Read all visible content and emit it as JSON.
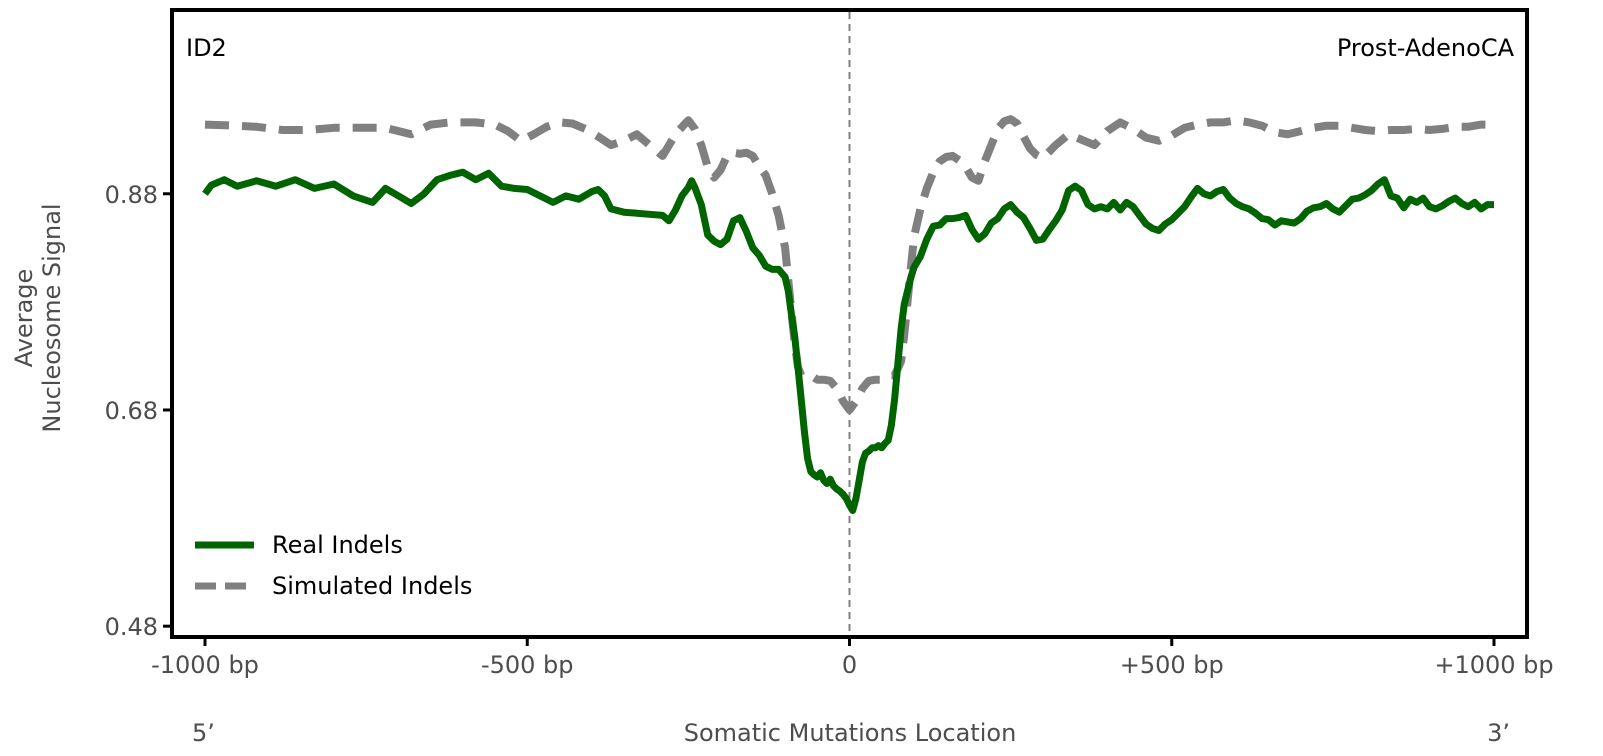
{
  "chart_data": {
    "type": "line",
    "signature_label": "ID2",
    "cancer_type_label": "Prost-AdenoCA",
    "ylabel_lines": [
      "Average",
      "Nucleosome Signal"
    ],
    "xlabel": "Somatic Mutations Location",
    "five_prime_label": "5’",
    "three_prime_label": "3’",
    "xlim": [
      -1000,
      1000
    ],
    "ylim": [
      0.47,
      1.05
    ],
    "x_ticks": [
      {
        "value": -1000,
        "label": "-1000 bp"
      },
      {
        "value": -500,
        "label": "-500 bp"
      },
      {
        "value": 0,
        "label": "0"
      },
      {
        "value": 500,
        "label": "+500 bp"
      },
      {
        "value": 1000,
        "label": "+1000 bp"
      }
    ],
    "y_ticks": [
      {
        "value": 0.48,
        "label": "0.48"
      },
      {
        "value": 0.68,
        "label": "0.68"
      },
      {
        "value": 0.88,
        "label": "0.88"
      }
    ],
    "center_line_x": 0,
    "legend_position": "lower-left",
    "series": [
      {
        "name": "Real Indels",
        "color": "#006400",
        "style": "solid",
        "points": [
          [
            -1000,
            0.88
          ],
          [
            -990,
            0.888
          ],
          [
            -970,
            0.893
          ],
          [
            -950,
            0.887
          ],
          [
            -920,
            0.892
          ],
          [
            -890,
            0.887
          ],
          [
            -860,
            0.893
          ],
          [
            -830,
            0.885
          ],
          [
            -800,
            0.889
          ],
          [
            -770,
            0.878
          ],
          [
            -740,
            0.872
          ],
          [
            -720,
            0.885
          ],
          [
            -700,
            0.878
          ],
          [
            -680,
            0.871
          ],
          [
            -660,
            0.88
          ],
          [
            -640,
            0.893
          ],
          [
            -620,
            0.897
          ],
          [
            -600,
            0.9
          ],
          [
            -580,
            0.893
          ],
          [
            -560,
            0.899
          ],
          [
            -540,
            0.887
          ],
          [
            -520,
            0.885
          ],
          [
            -500,
            0.884
          ],
          [
            -480,
            0.878
          ],
          [
            -460,
            0.872
          ],
          [
            -440,
            0.878
          ],
          [
            -420,
            0.875
          ],
          [
            -400,
            0.882
          ],
          [
            -390,
            0.884
          ],
          [
            -380,
            0.878
          ],
          [
            -370,
            0.866
          ],
          [
            -350,
            0.863
          ],
          [
            -330,
            0.862
          ],
          [
            -310,
            0.861
          ],
          [
            -290,
            0.86
          ],
          [
            -280,
            0.855
          ],
          [
            -270,
            0.865
          ],
          [
            -260,
            0.878
          ],
          [
            -250,
            0.886
          ],
          [
            -245,
            0.892
          ],
          [
            -240,
            0.886
          ],
          [
            -230,
            0.87
          ],
          [
            -220,
            0.842
          ],
          [
            -210,
            0.836
          ],
          [
            -200,
            0.833
          ],
          [
            -190,
            0.838
          ],
          [
            -180,
            0.855
          ],
          [
            -170,
            0.858
          ],
          [
            -160,
            0.845
          ],
          [
            -150,
            0.83
          ],
          [
            -140,
            0.823
          ],
          [
            -130,
            0.813
          ],
          [
            -120,
            0.81
          ],
          [
            -110,
            0.81
          ],
          [
            -100,
            0.803
          ],
          [
            -95,
            0.79
          ],
          [
            -90,
            0.768
          ],
          [
            -85,
            0.748
          ],
          [
            -80,
            0.72
          ],
          [
            -75,
            0.69
          ],
          [
            -70,
            0.66
          ],
          [
            -65,
            0.635
          ],
          [
            -60,
            0.623
          ],
          [
            -55,
            0.62
          ],
          [
            -50,
            0.618
          ],
          [
            -45,
            0.622
          ],
          [
            -40,
            0.615
          ],
          [
            -35,
            0.612
          ],
          [
            -30,
            0.616
          ],
          [
            -25,
            0.61
          ],
          [
            -20,
            0.607
          ],
          [
            -15,
            0.605
          ],
          [
            -10,
            0.602
          ],
          [
            -5,
            0.598
          ],
          [
            0,
            0.592
          ],
          [
            5,
            0.587
          ],
          [
            10,
            0.598
          ],
          [
            15,
            0.615
          ],
          [
            20,
            0.632
          ],
          [
            25,
            0.64
          ],
          [
            30,
            0.642
          ],
          [
            35,
            0.645
          ],
          [
            40,
            0.645
          ],
          [
            45,
            0.647
          ],
          [
            50,
            0.645
          ],
          [
            55,
            0.649
          ],
          [
            60,
            0.652
          ],
          [
            65,
            0.666
          ],
          [
            70,
            0.69
          ],
          [
            75,
            0.722
          ],
          [
            80,
            0.755
          ],
          [
            85,
            0.778
          ],
          [
            90,
            0.79
          ],
          [
            95,
            0.802
          ],
          [
            100,
            0.812
          ],
          [
            110,
            0.822
          ],
          [
            120,
            0.838
          ],
          [
            130,
            0.85
          ],
          [
            140,
            0.851
          ],
          [
            150,
            0.857
          ],
          [
            160,
            0.857
          ],
          [
            170,
            0.858
          ],
          [
            180,
            0.86
          ],
          [
            190,
            0.847
          ],
          [
            200,
            0.838
          ],
          [
            210,
            0.843
          ],
          [
            220,
            0.853
          ],
          [
            230,
            0.857
          ],
          [
            240,
            0.866
          ],
          [
            250,
            0.87
          ],
          [
            260,
            0.863
          ],
          [
            270,
            0.858
          ],
          [
            280,
            0.848
          ],
          [
            290,
            0.837
          ],
          [
            300,
            0.838
          ],
          [
            310,
            0.847
          ],
          [
            320,
            0.855
          ],
          [
            330,
            0.865
          ],
          [
            340,
            0.883
          ],
          [
            350,
            0.887
          ],
          [
            360,
            0.883
          ],
          [
            370,
            0.87
          ],
          [
            380,
            0.866
          ],
          [
            390,
            0.868
          ],
          [
            400,
            0.866
          ],
          [
            410,
            0.872
          ],
          [
            420,
            0.865
          ],
          [
            430,
            0.872
          ],
          [
            440,
            0.868
          ],
          [
            450,
            0.86
          ],
          [
            460,
            0.852
          ],
          [
            470,
            0.848
          ],
          [
            480,
            0.846
          ],
          [
            490,
            0.852
          ],
          [
            500,
            0.856
          ],
          [
            510,
            0.862
          ],
          [
            520,
            0.868
          ],
          [
            530,
            0.877
          ],
          [
            540,
            0.885
          ],
          [
            550,
            0.88
          ],
          [
            560,
            0.878
          ],
          [
            570,
            0.882
          ],
          [
            580,
            0.884
          ],
          [
            590,
            0.876
          ],
          [
            600,
            0.871
          ],
          [
            610,
            0.868
          ],
          [
            620,
            0.866
          ],
          [
            630,
            0.862
          ],
          [
            640,
            0.857
          ],
          [
            650,
            0.856
          ],
          [
            660,
            0.851
          ],
          [
            670,
            0.855
          ],
          [
            680,
            0.854
          ],
          [
            690,
            0.853
          ],
          [
            700,
            0.857
          ],
          [
            710,
            0.864
          ],
          [
            720,
            0.867
          ],
          [
            730,
            0.868
          ],
          [
            740,
            0.871
          ],
          [
            750,
            0.866
          ],
          [
            760,
            0.863
          ],
          [
            770,
            0.869
          ],
          [
            780,
            0.875
          ],
          [
            790,
            0.876
          ],
          [
            800,
            0.879
          ],
          [
            810,
            0.883
          ],
          [
            820,
            0.889
          ],
          [
            830,
            0.893
          ],
          [
            840,
            0.878
          ],
          [
            850,
            0.876
          ],
          [
            860,
            0.867
          ],
          [
            870,
            0.875
          ],
          [
            880,
            0.872
          ],
          [
            890,
            0.876
          ],
          [
            900,
            0.868
          ],
          [
            910,
            0.866
          ],
          [
            920,
            0.869
          ],
          [
            930,
            0.873
          ],
          [
            940,
            0.876
          ],
          [
            950,
            0.871
          ],
          [
            960,
            0.868
          ],
          [
            970,
            0.872
          ],
          [
            980,
            0.866
          ],
          [
            990,
            0.87
          ],
          [
            1000,
            0.87
          ]
        ]
      },
      {
        "name": "Simulated Indels",
        "color": "#808080",
        "style": "dashed",
        "points": [
          [
            -1000,
            0.944
          ],
          [
            -950,
            0.943
          ],
          [
            -920,
            0.942
          ],
          [
            -880,
            0.939
          ],
          [
            -840,
            0.939
          ],
          [
            -800,
            0.941
          ],
          [
            -760,
            0.941
          ],
          [
            -720,
            0.941
          ],
          [
            -680,
            0.935
          ],
          [
            -650,
            0.944
          ],
          [
            -620,
            0.946
          ],
          [
            -580,
            0.946
          ],
          [
            -550,
            0.944
          ],
          [
            -530,
            0.938
          ],
          [
            -510,
            0.929
          ],
          [
            -490,
            0.935
          ],
          [
            -470,
            0.942
          ],
          [
            -450,
            0.946
          ],
          [
            -430,
            0.945
          ],
          [
            -410,
            0.94
          ],
          [
            -390,
            0.933
          ],
          [
            -370,
            0.925
          ],
          [
            -350,
            0.929
          ],
          [
            -330,
            0.935
          ],
          [
            -310,
            0.925
          ],
          [
            -290,
            0.915
          ],
          [
            -270,
            0.935
          ],
          [
            -255,
            0.945
          ],
          [
            -250,
            0.948
          ],
          [
            -240,
            0.94
          ],
          [
            -230,
            0.925
          ],
          [
            -220,
            0.905
          ],
          [
            -210,
            0.895
          ],
          [
            -200,
            0.902
          ],
          [
            -190,
            0.915
          ],
          [
            -180,
            0.918
          ],
          [
            -170,
            0.917
          ],
          [
            -160,
            0.918
          ],
          [
            -150,
            0.915
          ],
          [
            -140,
            0.905
          ],
          [
            -130,
            0.897
          ],
          [
            -120,
            0.88
          ],
          [
            -110,
            0.86
          ],
          [
            -100,
            0.83
          ],
          [
            -95,
            0.8
          ],
          [
            -90,
            0.77
          ],
          [
            -85,
            0.742
          ],
          [
            -80,
            0.72
          ],
          [
            -75,
            0.712
          ],
          [
            -70,
            0.712
          ],
          [
            -60,
            0.712
          ],
          [
            -50,
            0.708
          ],
          [
            -40,
            0.708
          ],
          [
            -30,
            0.707
          ],
          [
            -20,
            0.7
          ],
          [
            -10,
            0.688
          ],
          [
            0,
            0.68
          ],
          [
            10,
            0.688
          ],
          [
            20,
            0.7
          ],
          [
            30,
            0.707
          ],
          [
            40,
            0.708
          ],
          [
            50,
            0.708
          ],
          [
            60,
            0.712
          ],
          [
            70,
            0.712
          ],
          [
            80,
            0.725
          ],
          [
            85,
            0.75
          ],
          [
            90,
            0.78
          ],
          [
            95,
            0.81
          ],
          [
            100,
            0.84
          ],
          [
            110,
            0.866
          ],
          [
            120,
            0.885
          ],
          [
            130,
            0.9
          ],
          [
            140,
            0.91
          ],
          [
            150,
            0.914
          ],
          [
            160,
            0.915
          ],
          [
            170,
            0.911
          ],
          [
            180,
            0.905
          ],
          [
            190,
            0.895
          ],
          [
            200,
            0.892
          ],
          [
            210,
            0.91
          ],
          [
            220,
            0.925
          ],
          [
            230,
            0.94
          ],
          [
            240,
            0.947
          ],
          [
            250,
            0.949
          ],
          [
            260,
            0.945
          ],
          [
            270,
            0.933
          ],
          [
            280,
            0.922
          ],
          [
            290,
            0.916
          ],
          [
            300,
            0.913
          ],
          [
            320,
            0.925
          ],
          [
            340,
            0.935
          ],
          [
            360,
            0.93
          ],
          [
            380,
            0.925
          ],
          [
            400,
            0.938
          ],
          [
            420,
            0.946
          ],
          [
            440,
            0.94
          ],
          [
            460,
            0.932
          ],
          [
            480,
            0.929
          ],
          [
            500,
            0.934
          ],
          [
            520,
            0.941
          ],
          [
            540,
            0.944
          ],
          [
            560,
            0.946
          ],
          [
            580,
            0.946
          ],
          [
            600,
            0.948
          ],
          [
            620,
            0.946
          ],
          [
            640,
            0.943
          ],
          [
            660,
            0.937
          ],
          [
            680,
            0.935
          ],
          [
            700,
            0.938
          ],
          [
            720,
            0.941
          ],
          [
            740,
            0.943
          ],
          [
            760,
            0.943
          ],
          [
            780,
            0.941
          ],
          [
            800,
            0.939
          ],
          [
            820,
            0.938
          ],
          [
            840,
            0.939
          ],
          [
            860,
            0.939
          ],
          [
            880,
            0.94
          ],
          [
            900,
            0.939
          ],
          [
            920,
            0.94
          ],
          [
            940,
            0.942
          ],
          [
            960,
            0.942
          ],
          [
            980,
            0.944
          ],
          [
            1000,
            0.944
          ]
        ]
      }
    ]
  }
}
